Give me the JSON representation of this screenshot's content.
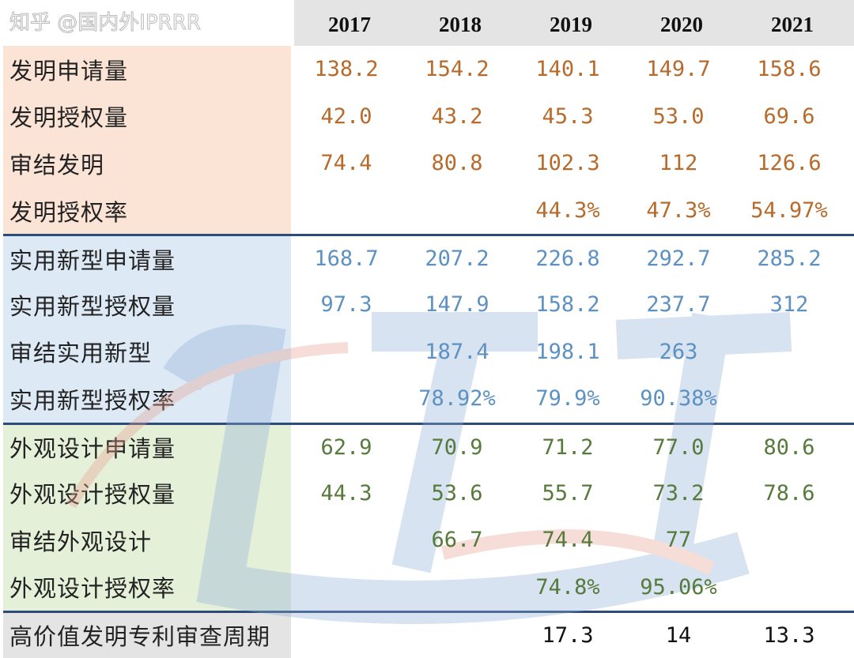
{
  "header": {
    "years": [
      "2017",
      "2018",
      "2019",
      "2020",
      "2021"
    ]
  },
  "sections": [
    {
      "rows": [
        {
          "label": "发明申请量",
          "values": [
            "138.2",
            "154.2",
            "140.1",
            "149.7",
            "158.6"
          ]
        },
        {
          "label": "发明授权量",
          "values": [
            "42.0",
            "43.2",
            "45.3",
            "53.0",
            "69.6"
          ]
        },
        {
          "label": "审结发明",
          "values": [
            "74.4",
            "80.8",
            "102.3",
            "112",
            "126.6"
          ]
        },
        {
          "label": "发明授权率",
          "values": [
            "",
            "",
            "44.3%",
            "47.3%",
            "54.97%"
          ]
        }
      ]
    },
    {
      "rows": [
        {
          "label": "实用新型申请量",
          "values": [
            "168.7",
            "207.2",
            "226.8",
            "292.7",
            "285.2"
          ]
        },
        {
          "label": "实用新型授权量",
          "values": [
            "97.3",
            "147.9",
            "158.2",
            "237.7",
            "312"
          ]
        },
        {
          "label": "审结实用新型",
          "values": [
            "",
            "187.4",
            "198.1",
            "263",
            ""
          ]
        },
        {
          "label": "实用新型授权率",
          "values": [
            "",
            "78.92%",
            "79.9%",
            "90.38%",
            ""
          ]
        }
      ]
    },
    {
      "rows": [
        {
          "label": "外观设计申请量",
          "values": [
            "62.9",
            "70.9",
            "71.2",
            "77.0",
            "80.6"
          ]
        },
        {
          "label": "外观设计授权量",
          "values": [
            "44.3",
            "53.6",
            "55.7",
            "73.2",
            "78.6"
          ]
        },
        {
          "label": "审结外观设计",
          "values": [
            "",
            "66.7",
            "74.4",
            "77",
            ""
          ]
        },
        {
          "label": "外观设计授权率",
          "values": [
            "",
            "",
            "74.8%",
            "95.06%",
            ""
          ]
        }
      ]
    },
    {
      "rows": [
        {
          "label": "高价值发明专利审查周期",
          "values": [
            "",
            "",
            "17.3",
            "14",
            "13.3"
          ]
        }
      ]
    }
  ],
  "colors": {
    "invention": "#b86a2b",
    "utility": "#5d91c2",
    "design": "#557a3b",
    "separator": "#2c4b78"
  },
  "watermark": "知乎 @国内外IPRRR"
}
